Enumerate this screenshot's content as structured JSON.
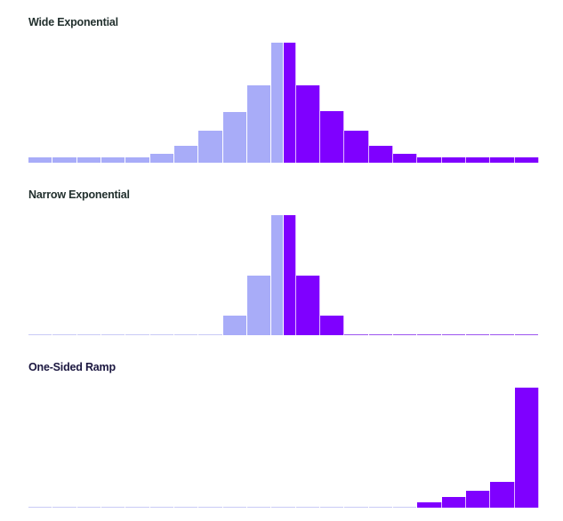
{
  "colors": {
    "left": "#a8acf8",
    "right": "#7f00ff",
    "title_dark": "#22302e",
    "title_navy": "#1b1740"
  },
  "chart_data": [
    {
      "type": "bar",
      "title": "Wide Exponential",
      "xlabel": "",
      "ylabel": "",
      "grid": false,
      "bins": 21,
      "center_bin_split": true,
      "series": [
        {
          "name": "left",
          "color": "#a8acf8",
          "values": [
            6,
            6,
            6,
            6,
            6,
            10,
            19,
            36,
            57,
            87,
            135,
            0,
            0,
            0,
            0,
            0,
            0,
            0,
            0,
            0,
            0
          ]
        },
        {
          "name": "right",
          "color": "#7f00ff",
          "values": [
            0,
            0,
            0,
            0,
            0,
            0,
            0,
            0,
            0,
            0,
            135,
            87,
            58,
            36,
            19,
            10,
            6,
            6,
            6,
            6,
            6
          ]
        }
      ],
      "ylim": [
        0,
        135
      ]
    },
    {
      "type": "bar",
      "title": "Narrow Exponential",
      "xlabel": "",
      "ylabel": "",
      "grid": false,
      "bins": 21,
      "center_bin_split": true,
      "series": [
        {
          "name": "left",
          "color": "#a8acf8",
          "values": [
            1,
            1,
            1,
            1,
            1,
            1,
            1,
            1,
            22,
            67,
            135,
            0,
            0,
            0,
            0,
            0,
            0,
            0,
            0,
            0,
            0
          ]
        },
        {
          "name": "right",
          "color": "#7f00ff",
          "values": [
            0,
            0,
            0,
            0,
            0,
            0,
            0,
            0,
            0,
            0,
            135,
            67,
            22,
            1,
            1,
            1,
            1,
            1,
            1,
            1,
            1
          ]
        }
      ],
      "ylim": [
        0,
        135
      ]
    },
    {
      "type": "bar",
      "title": "One-Sided Ramp",
      "xlabel": "",
      "ylabel": "",
      "grid": false,
      "bins": 21,
      "center_bin_split": false,
      "series": [
        {
          "name": "left",
          "color": "#a8acf8",
          "values": [
            1,
            1,
            1,
            1,
            1,
            1,
            1,
            1,
            1,
            1,
            1,
            1,
            1,
            1,
            1,
            1,
            0,
            0,
            0,
            0,
            0
          ]
        },
        {
          "name": "right",
          "color": "#7f00ff",
          "values": [
            0,
            0,
            0,
            0,
            0,
            0,
            0,
            0,
            0,
            0,
            0,
            0,
            0,
            0,
            0,
            0,
            6,
            12,
            19,
            29,
            135
          ]
        }
      ],
      "ylim": [
        0,
        135
      ]
    }
  ],
  "panels": [
    {
      "title": "Wide Exponential"
    },
    {
      "title": "Narrow Exponential"
    },
    {
      "title": "One-Sided Ramp"
    }
  ]
}
